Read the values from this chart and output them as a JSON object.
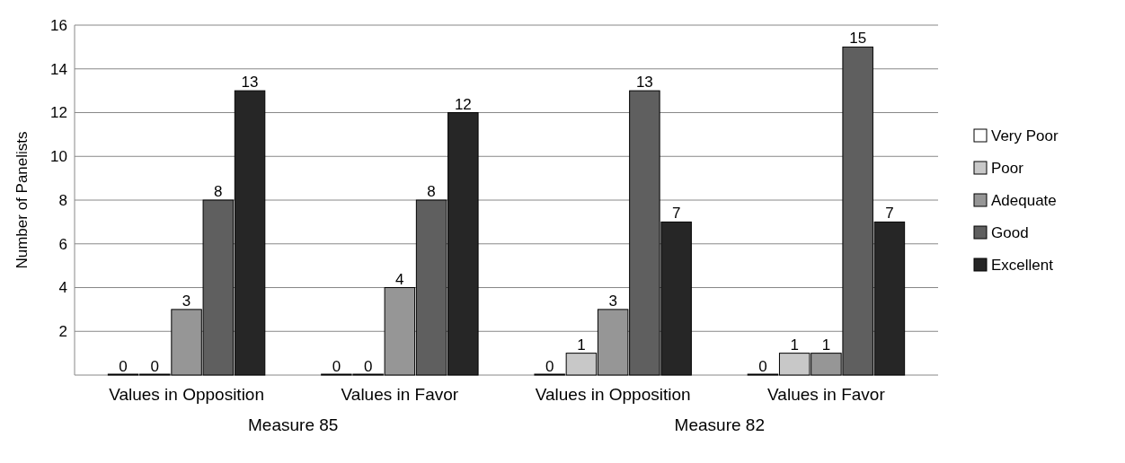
{
  "chart_data": {
    "type": "bar",
    "ylabel": "Number of Panelists",
    "categories": [
      "Values in Opposition",
      "Values in Favor",
      "Values in Opposition",
      "Values in Favor"
    ],
    "annotations": [
      "Measure 85",
      "Measure 82"
    ],
    "series": [
      {
        "name": "Very Poor",
        "color": "#ffffff",
        "values": [
          0,
          0,
          0,
          0
        ]
      },
      {
        "name": "Poor",
        "color": "#c8c8c8",
        "values": [
          0,
          0,
          1,
          1
        ]
      },
      {
        "name": "Adequate",
        "color": "#969696",
        "values": [
          3,
          4,
          3,
          1
        ]
      },
      {
        "name": "Good",
        "color": "#5f5f5f",
        "values": [
          8,
          8,
          13,
          15
        ]
      },
      {
        "name": "Excellent",
        "color": "#262626",
        "values": [
          13,
          12,
          7,
          7
        ]
      }
    ],
    "ylim": [
      0,
      16
    ],
    "yticks": [
      2,
      4,
      6,
      8,
      10,
      12,
      14,
      16
    ],
    "grid": "y",
    "legend": "right",
    "data_labels": true
  }
}
